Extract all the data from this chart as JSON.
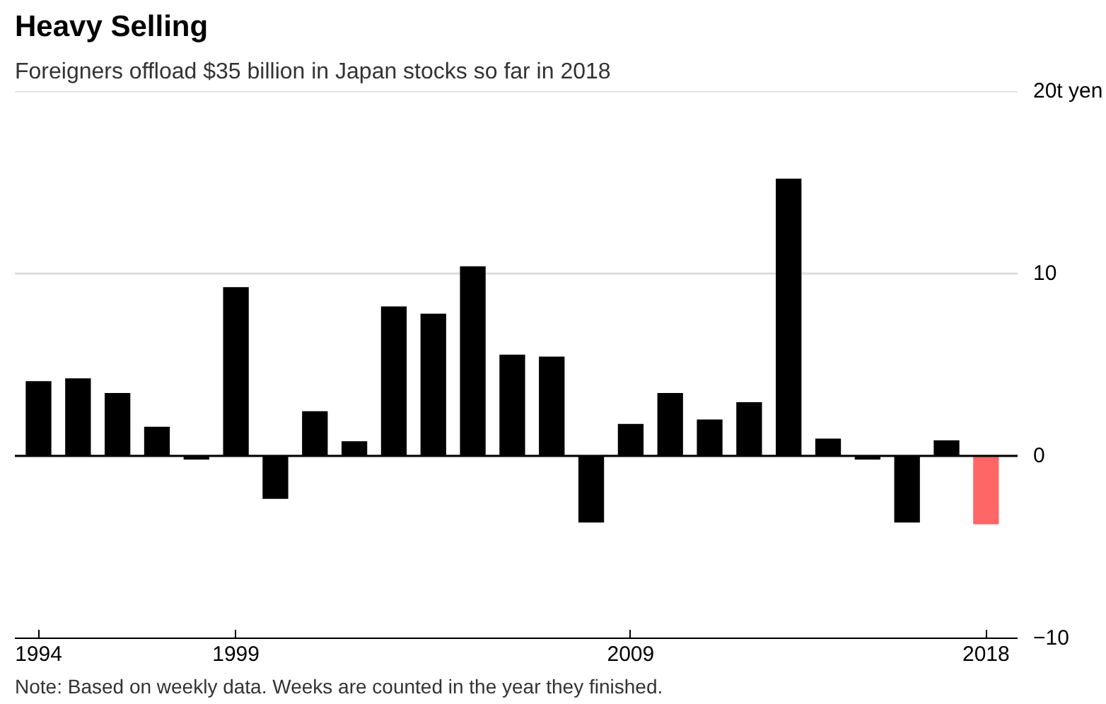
{
  "chart_data": {
    "type": "bar",
    "title": "Heavy Selling",
    "subtitle": "Foreigners offload $35 billion in Japan stocks so far in 2018",
    "x": [
      1994,
      1995,
      1996,
      1997,
      1998,
      1999,
      2000,
      2001,
      2002,
      2003,
      2004,
      2005,
      2006,
      2007,
      2008,
      2009,
      2010,
      2011,
      2012,
      2013,
      2014,
      2015,
      2016,
      2017,
      2018
    ],
    "values": [
      4.1,
      4.25,
      3.45,
      1.6,
      -0.2,
      9.25,
      -2.35,
      2.45,
      0.8,
      8.2,
      7.8,
      10.4,
      5.55,
      5.45,
      -3.65,
      1.75,
      3.45,
      2.0,
      2.95,
      15.2,
      0.95,
      -0.2,
      -3.65,
      0.85,
      -3.75
    ],
    "colors": [
      "#000000",
      "#000000",
      "#000000",
      "#000000",
      "#000000",
      "#000000",
      "#000000",
      "#000000",
      "#000000",
      "#000000",
      "#000000",
      "#000000",
      "#000000",
      "#000000",
      "#000000",
      "#000000",
      "#000000",
      "#000000",
      "#000000",
      "#000000",
      "#000000",
      "#000000",
      "#000000",
      "#000000",
      "#ff6666"
    ],
    "xlim": [
      1993.4,
      2018.8
    ],
    "xticks": [
      1994,
      1999,
      2009,
      2018
    ],
    "ylim": [
      -10,
      20
    ],
    "yticks": [
      -10,
      0,
      10,
      {
        "value": 20,
        "label": "20t yen"
      }
    ],
    "grid": "y",
    "ref_lines": [
      {
        "axis": "y",
        "value": 0,
        "color": "#000000"
      }
    ],
    "annotations": [
      "Note: Based on weekly data. Weeks are counted in the year they finished."
    ]
  }
}
